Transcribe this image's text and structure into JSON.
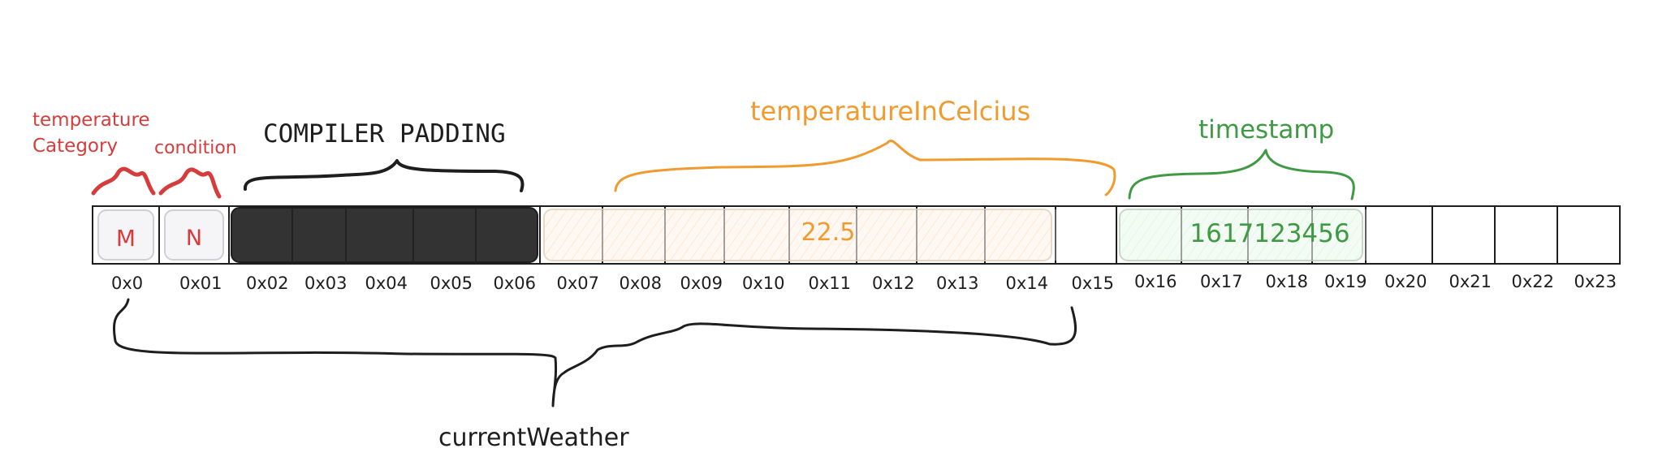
{
  "diagram": {
    "labels": {
      "temperature_category_line1": "temperature",
      "temperature_category_line2": "Category",
      "condition": "condition",
      "padding": "COMPILER PADDING",
      "temperature_in_celcius": "temperatureInCelcius",
      "timestamp": "timestamp",
      "current_weather": "currentWeather"
    },
    "values": {
      "temperature_category": "M",
      "condition": "N",
      "temperature_in_celcius": "22.5",
      "timestamp": "1617123456"
    },
    "addresses": [
      "0x0",
      "0x01",
      "0x02",
      "0x03",
      "0x04",
      "0x05",
      "0x06",
      "0x07",
      "0x08",
      "0x09",
      "0x10",
      "0x11",
      "0x12",
      "0x13",
      "0x14",
      "0x15",
      "0x16",
      "0x17",
      "0x18",
      "0x19",
      "0x20",
      "0x21",
      "0x22",
      "0x23"
    ],
    "colors": {
      "red": "#d63c3c",
      "orange": "#f19a2e",
      "green": "#3f9a43",
      "black": "#1e1e1e",
      "padding_fill": "#333333",
      "orange_fill": "#fff6ee",
      "green_fill": "#eefaf0"
    }
  }
}
